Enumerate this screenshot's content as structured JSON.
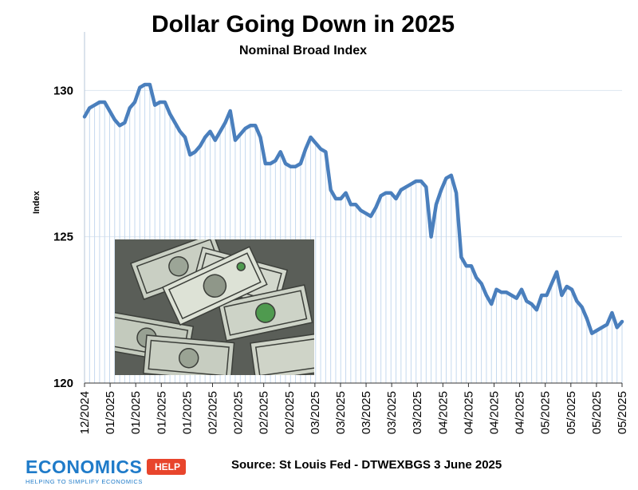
{
  "header": {
    "title": "Dollar Going Down in 2025",
    "subtitle": "Nominal Broad Index"
  },
  "footer": {
    "source": "Source: St Louis Fed - DTWEXBGS 3 June 2025",
    "logo_main": "ECONOMICS",
    "logo_help": "HELP",
    "logo_tagline": "HELPING TO SIMPLIFY ECONOMICS"
  },
  "colors": {
    "line": "#4a7fbd",
    "stem": "#c5d9ee",
    "grid": "#dde6f0"
  },
  "chart_data": {
    "type": "line",
    "title": "Dollar Going Down in 2025",
    "subtitle": "Nominal Broad Index",
    "xlabel": "",
    "ylabel": "Index",
    "ylim": [
      120,
      132
    ],
    "yticks": [
      120,
      125,
      130
    ],
    "xtick_labels": [
      "12/2024",
      "01/2025",
      "01/2025",
      "01/2025",
      "01/2025",
      "02/2025",
      "02/2025",
      "02/2025",
      "02/2025",
      "03/2025",
      "03/2025",
      "03/2025",
      "03/2025",
      "03/2025",
      "04/2025",
      "04/2025",
      "04/2025",
      "04/2025",
      "05/2025",
      "05/2025",
      "05/2025",
      "05/2025"
    ],
    "grid": true,
    "series": [
      {
        "values": [
          129.1,
          129.4,
          129.5,
          129.6,
          129.6,
          129.3,
          129.0,
          128.8,
          128.9,
          129.4,
          129.6,
          130.1,
          130.2,
          130.2,
          129.5,
          129.6,
          129.6,
          129.2,
          128.9,
          128.6,
          128.4,
          127.8,
          127.9,
          128.1,
          128.4,
          128.6,
          128.3,
          128.6,
          128.9,
          129.3,
          128.3,
          128.5,
          128.7,
          128.8,
          128.8,
          128.4,
          127.5,
          127.5,
          127.6,
          127.9,
          127.5,
          127.4,
          127.4,
          127.5,
          128.0,
          128.4,
          128.2,
          128.0,
          127.9,
          126.6,
          126.3,
          126.3,
          126.5,
          126.1,
          126.1,
          125.9,
          125.8,
          125.7,
          126.0,
          126.4,
          126.5,
          126.5,
          126.3,
          126.6,
          126.7,
          126.8,
          126.9,
          126.9,
          126.7,
          125.0,
          126.1,
          126.6,
          127.0,
          127.1,
          126.5,
          124.3,
          124.0,
          124.0,
          123.6,
          123.4,
          123.0,
          122.7,
          123.2,
          123.1,
          123.1,
          123.0,
          122.9,
          123.2,
          122.8,
          122.7,
          122.5,
          123.0,
          123.0,
          123.4,
          123.8,
          123.0,
          123.3,
          123.2,
          122.8,
          122.6,
          122.2,
          121.7,
          121.8,
          121.9,
          122.0,
          122.4,
          121.9,
          122.1
        ]
      }
    ]
  }
}
